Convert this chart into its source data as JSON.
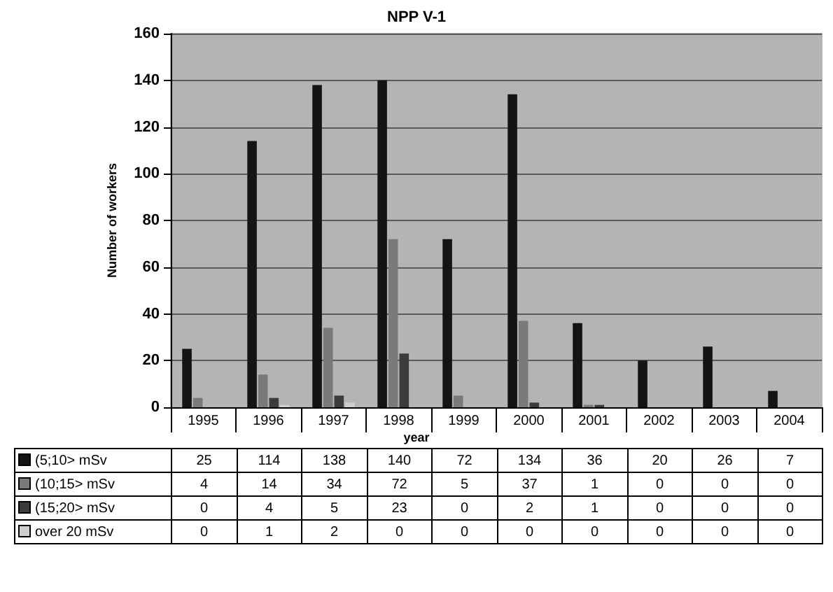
{
  "chart_data": {
    "type": "bar",
    "title": "NPP V-1",
    "xlabel": "year",
    "ylabel": "Number of workers",
    "categories": [
      "1995",
      "1996",
      "1997",
      "1998",
      "1999",
      "2000",
      "2001",
      "2002",
      "2003",
      "2004"
    ],
    "series": [
      {
        "name": "(5;10> mSv",
        "color": "#141414",
        "values": [
          25,
          114,
          138,
          140,
          72,
          134,
          36,
          20,
          26,
          7
        ]
      },
      {
        "name": "(10;15> mSv",
        "color": "#7a7a7a",
        "values": [
          4,
          14,
          34,
          72,
          5,
          37,
          1,
          0,
          0,
          0
        ]
      },
      {
        "name": "(15;20> mSv",
        "color": "#3c3c3c",
        "values": [
          0,
          4,
          5,
          23,
          0,
          2,
          1,
          0,
          0,
          0
        ]
      },
      {
        "name": "over 20 mSv",
        "color": "#cfcfcf",
        "values": [
          0,
          1,
          2,
          0,
          0,
          0,
          0,
          0,
          0,
          0
        ]
      }
    ],
    "ylim": [
      0,
      160
    ],
    "yticks": [
      0,
      20,
      40,
      60,
      80,
      100,
      120,
      140,
      160
    ],
    "grid": "y",
    "legend": "bottom",
    "data_labels": true
  }
}
